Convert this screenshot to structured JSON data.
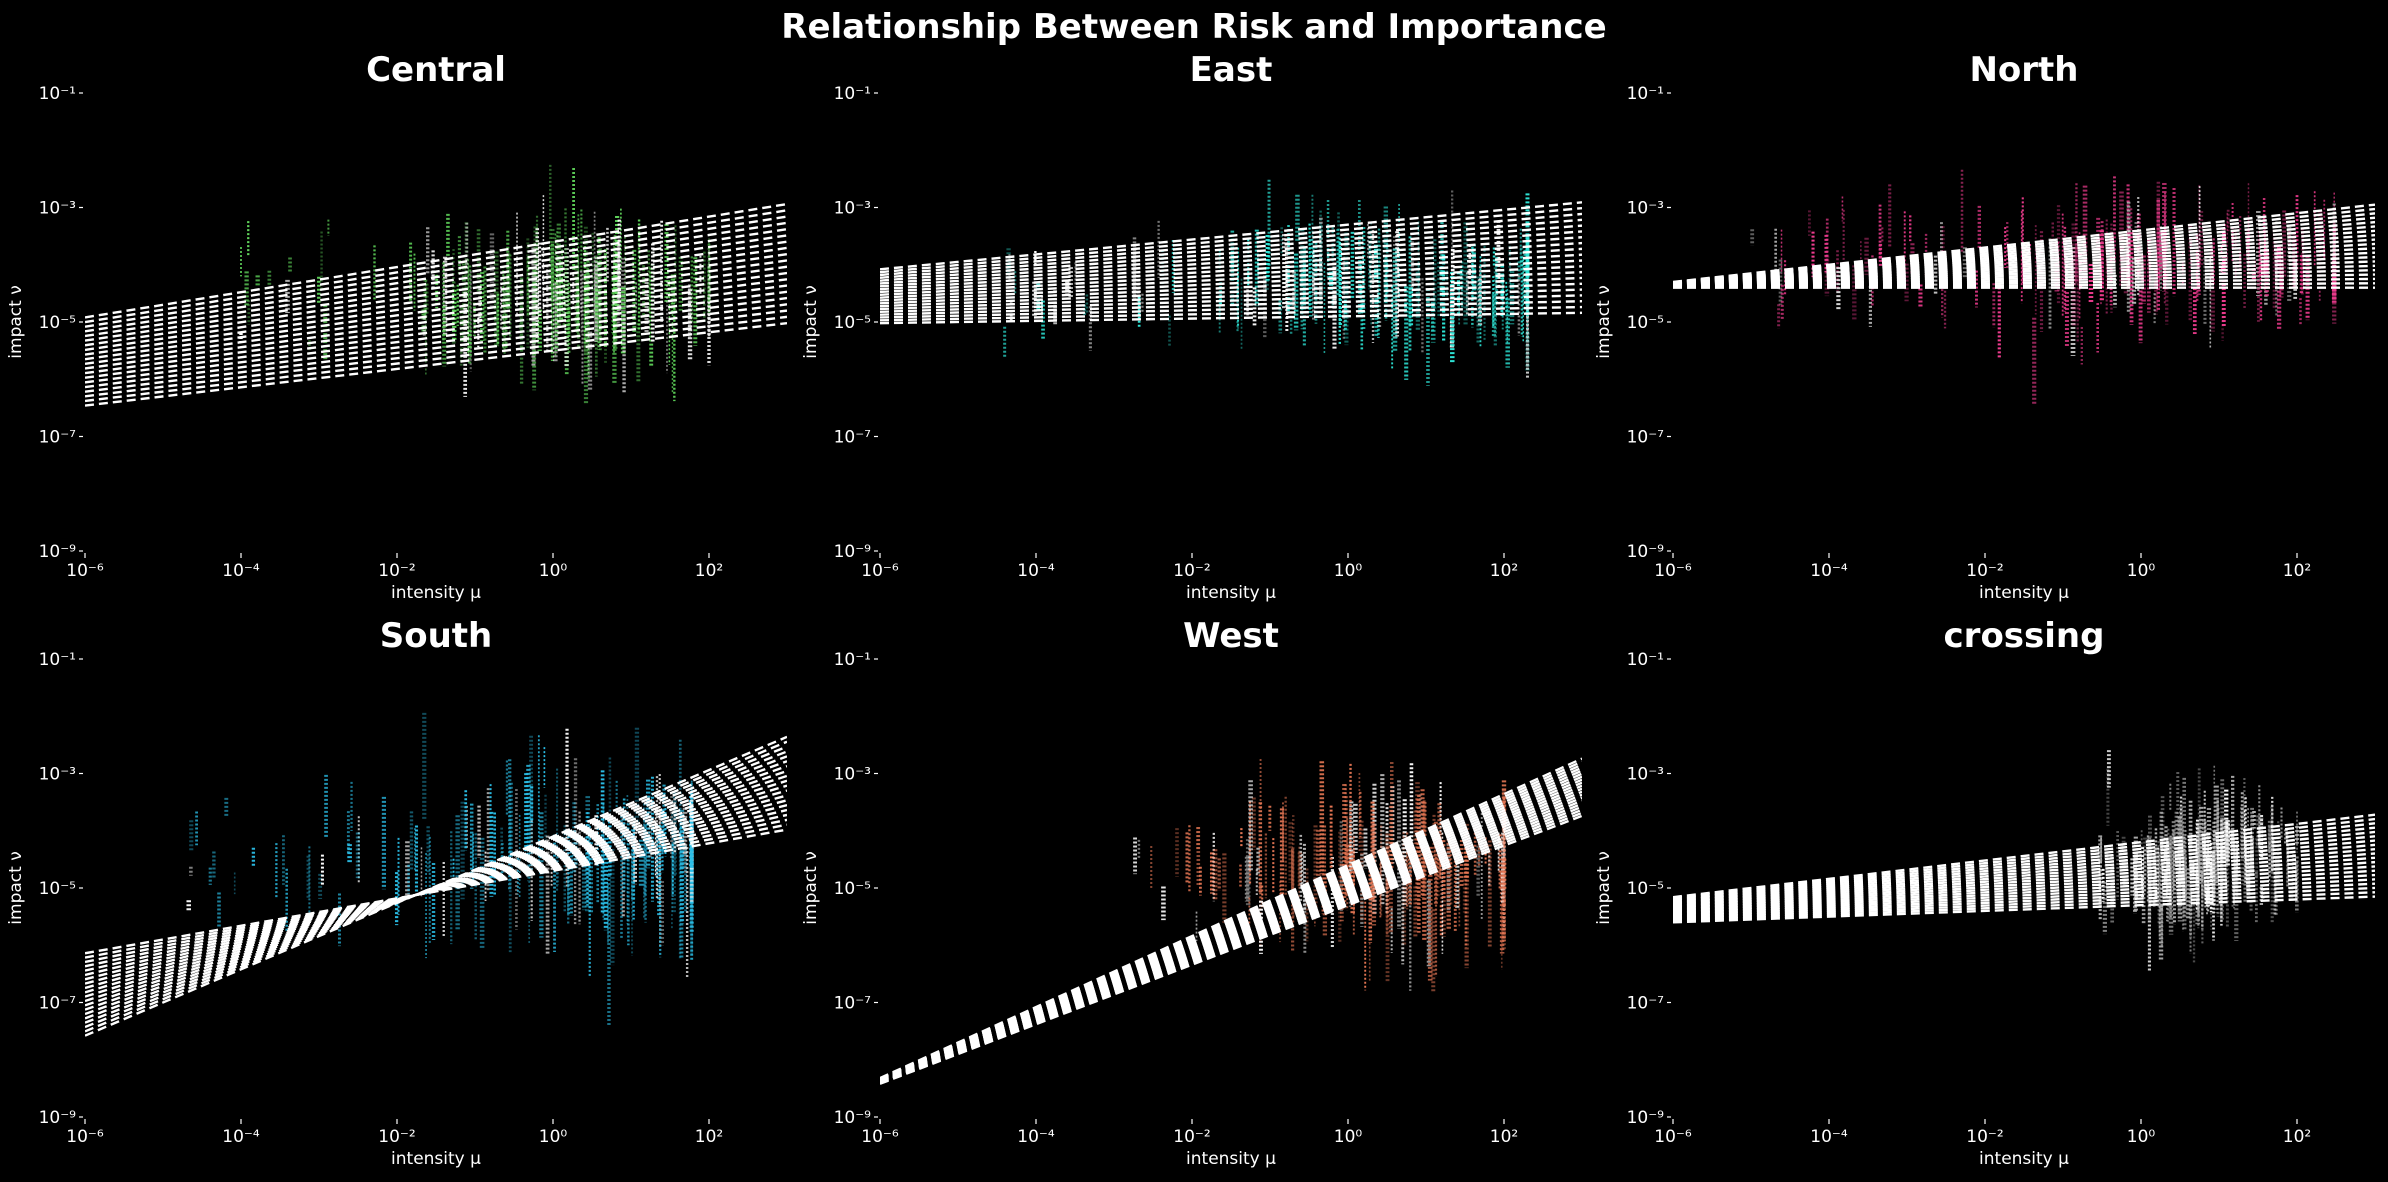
{
  "figure": {
    "title": "Relationship Between Risk and Importance",
    "background": "#000000"
  },
  "chart_data": [
    {
      "type": "scatter",
      "title": "Central",
      "xlabel": "intensity μ",
      "ylabel": "impact ν",
      "xscale": "log",
      "yscale": "log",
      "xlim": [
        1e-06,
        1000
      ],
      "ylim": [
        1e-09,
        0.1
      ],
      "color": "#5fd35a",
      "grid": false,
      "x_tick_labels": [
        "10⁻⁶",
        "10⁻⁴",
        "10⁻²",
        "10⁰",
        "10²"
      ],
      "y_tick_labels": [
        "10⁻⁹",
        "10⁻⁷",
        "10⁻⁵",
        "10⁻³",
        "10⁻¹"
      ],
      "cloud": {
        "x_range": [
          0.0001,
          100
        ],
        "y_center": 3e-05,
        "y_spread_decades": 1.0,
        "x_center": 1
      },
      "fit_lines": {
        "count": 20,
        "slope_range": [
          0.16,
          0.22
        ],
        "intercept_range": [
          -5.5,
          -3.6
        ]
      }
    },
    {
      "type": "scatter",
      "title": "East",
      "xlabel": "intensity μ",
      "ylabel": "impact ν",
      "xscale": "log",
      "yscale": "log",
      "xlim": [
        1e-06,
        1000
      ],
      "ylim": [
        1e-09,
        0.1
      ],
      "color": "#2ee6d8",
      "grid": false,
      "x_tick_labels": [
        "10⁻⁶",
        "10⁻⁴",
        "10⁻²",
        "10⁰",
        "10²"
      ],
      "y_tick_labels": [
        "10⁻⁹",
        "10⁻⁷",
        "10⁻⁵",
        "10⁻³",
        "10⁻¹"
      ],
      "cloud": {
        "x_range": [
          3e-05,
          200
        ],
        "y_center": 4e-05,
        "y_spread_decades": 0.9,
        "x_center": 3
      },
      "fit_lines": {
        "count": 20,
        "slope_range": [
          0.02,
          0.13
        ],
        "intercept_range": [
          -4.9,
          -3.3
        ]
      }
    },
    {
      "type": "scatter",
      "title": "North",
      "xlabel": "intensity μ",
      "ylabel": "impact ν",
      "xscale": "log",
      "yscale": "log",
      "xlim": [
        1e-06,
        1000
      ],
      "ylim": [
        1e-09,
        0.1
      ],
      "color": "#ee3c8e",
      "grid": false,
      "x_tick_labels": [
        "10⁻⁶",
        "10⁻⁴",
        "10⁻²",
        "10⁰",
        "10²"
      ],
      "y_tick_labels": [
        "10⁻⁹",
        "10⁻⁷",
        "10⁻⁵",
        "10⁻³",
        "10⁻¹"
      ],
      "cloud": {
        "x_range": [
          1e-05,
          300
        ],
        "y_center": 0.0001,
        "y_spread_decades": 0.9,
        "x_center": 1
      },
      "fit_lines": {
        "count": 20,
        "slope_range": [
          0.0,
          0.15
        ],
        "intercept_range": [
          -4.4,
          -3.4
        ]
      }
    },
    {
      "type": "scatter",
      "title": "South",
      "xlabel": "intensity μ",
      "ylabel": "impact ν",
      "xscale": "log",
      "yscale": "log",
      "xlim": [
        1e-06,
        1000
      ],
      "ylim": [
        1e-09,
        0.1
      ],
      "color": "#2bbfe8",
      "grid": false,
      "x_tick_labels": [
        "10⁻⁶",
        "10⁻⁴",
        "10⁻²",
        "10⁰",
        "10²"
      ],
      "y_tick_labels": [
        "10⁻⁹",
        "10⁻⁷",
        "10⁻⁵",
        "10⁻³",
        "10⁻¹"
      ],
      "cloud": {
        "x_range": [
          2e-05,
          60
        ],
        "y_center": 3e-05,
        "y_spread_decades": 1.2,
        "x_center": 3
      },
      "fit_lines": {
        "count": 20,
        "slope_range": [
          0.24,
          0.58
        ],
        "intercept_range": [
          -4.7,
          -4.1
        ]
      }
    },
    {
      "type": "scatter",
      "title": "West",
      "xlabel": "intensity μ",
      "ylabel": "impact ν",
      "xscale": "log",
      "yscale": "log",
      "xlim": [
        1e-06,
        1000
      ],
      "ylim": [
        1e-09,
        0.1
      ],
      "color": "#e87855",
      "grid": false,
      "x_tick_labels": [
        "10⁻⁶",
        "10⁻⁴",
        "10⁻²",
        "10⁰",
        "10²"
      ],
      "y_tick_labels": [
        "10⁻⁹",
        "10⁻⁷",
        "10⁻⁵",
        "10⁻³",
        "10⁻¹"
      ],
      "cloud": {
        "x_range": [
          0.001,
          100
        ],
        "y_center": 2e-05,
        "y_spread_decades": 1.1,
        "x_center": 5
      },
      "fit_lines": {
        "count": 20,
        "slope_range": [
          0.52,
          0.62
        ],
        "intercept_range": [
          -5.3,
          -4.6
        ]
      }
    },
    {
      "type": "scatter",
      "title": "crossing",
      "xlabel": "intensity μ",
      "ylabel": "impact ν",
      "xscale": "log",
      "yscale": "log",
      "xlim": [
        1e-06,
        1000
      ],
      "ylim": [
        1e-09,
        0.1
      ],
      "color": "#b5b5b5",
      "grid": false,
      "x_tick_labels": [
        "10⁻⁶",
        "10⁻⁴",
        "10⁻²",
        "10⁰",
        "10²"
      ],
      "y_tick_labels": [
        "10⁻⁹",
        "10⁻⁷",
        "10⁻⁵",
        "10⁻³",
        "10⁻¹"
      ],
      "cloud": {
        "x_range": [
          0.3,
          100
        ],
        "y_center": 3e-05,
        "y_spread_decades": 0.9,
        "x_center": 5
      },
      "fit_lines": {
        "count": 20,
        "slope_range": [
          0.05,
          0.16
        ],
        "intercept_range": [
          -5.3,
          -4.2
        ]
      }
    }
  ]
}
